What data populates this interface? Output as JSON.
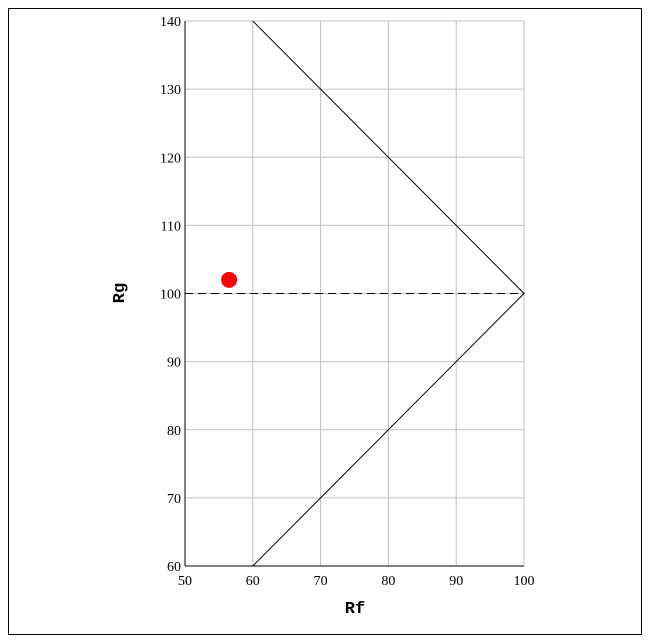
{
  "chart_data": {
    "type": "scatter",
    "title": "",
    "xlabel": "Rf",
    "ylabel": "Rg",
    "xlim": [
      50,
      100
    ],
    "ylim": [
      60,
      140
    ],
    "x_ticks": [
      50,
      60,
      70,
      80,
      90,
      100
    ],
    "y_ticks": [
      60,
      70,
      80,
      90,
      100,
      110,
      120,
      130,
      140
    ],
    "grid": true,
    "legend": "none",
    "series": [
      {
        "type": "line",
        "style": "solid",
        "color": "#000000",
        "points": [
          [
            60,
            140
          ],
          [
            100,
            100
          ],
          [
            60,
            60
          ]
        ]
      },
      {
        "type": "line",
        "style": "dashed",
        "color": "#000000",
        "points": [
          [
            50,
            100
          ],
          [
            100,
            100
          ]
        ]
      },
      {
        "type": "scatter",
        "marker": "circle",
        "color": "#ff0000",
        "points": [
          [
            56.5,
            102
          ]
        ]
      }
    ]
  }
}
